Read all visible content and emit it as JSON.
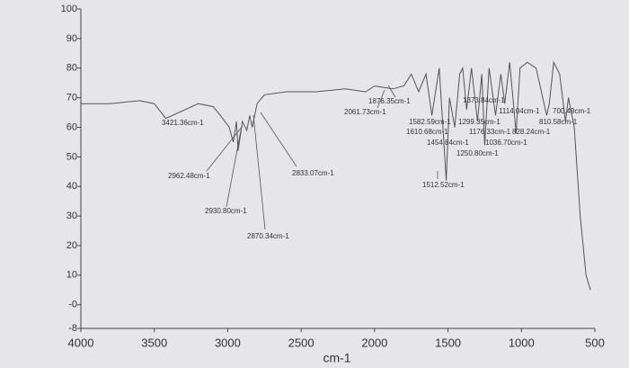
{
  "chart_data": {
    "type": "line",
    "xlabel": "cm-1",
    "x": [
      4000,
      3800,
      3600,
      3500,
      3421,
      3200,
      3100,
      3050,
      2990,
      2962,
      2940,
      2930,
      2900,
      2870,
      2850,
      2833,
      2800,
      2750,
      2600,
      2400,
      2200,
      2061,
      2000,
      1876,
      1800,
      1750,
      1700,
      1650,
      1610,
      1582,
      1560,
      1512,
      1490,
      1454,
      1420,
      1400,
      1373,
      1340,
      1299,
      1270,
      1250,
      1220,
      1176,
      1140,
      1114,
      1080,
      1036,
      1010,
      960,
      900,
      828,
      810,
      780,
      740,
      700,
      680,
      640,
      600,
      560,
      530
    ],
    "values": [
      68,
      68,
      69,
      68,
      63,
      68,
      67,
      64,
      60,
      55,
      62,
      52,
      62,
      59,
      64,
      60,
      68,
      71,
      72,
      72,
      73,
      72,
      74,
      73,
      74,
      78,
      72,
      78,
      64,
      73,
      80,
      42,
      70,
      60,
      78,
      80,
      66,
      80,
      62,
      78,
      54,
      80,
      64,
      78,
      68,
      82,
      58,
      80,
      82,
      80,
      64,
      68,
      82,
      78,
      62,
      70,
      60,
      30,
      10,
      5
    ],
    "color": "#555555",
    "xlim": [
      4000,
      500
    ],
    "xticks": [
      4000,
      3500,
      3000,
      2500,
      2000,
      1500,
      1000,
      500
    ],
    "ylim": [
      -8,
      100
    ],
    "yticks": [
      100,
      90,
      80,
      70,
      60,
      50,
      40,
      30,
      20,
      10,
      {
        "value": 0,
        "label": "-0"
      },
      -8
    ],
    "annotations": [
      "3421.36cm-1",
      "2962.48cm-1",
      "2930.80cm-1",
      "2870.34cm-1",
      "2833.07cm-1",
      "2061.73cm-1",
      "1876.35cm-1",
      "1373.84cm-1",
      "1114.04cm-1",
      "700.49cm-1",
      "1582.59cm-1",
      "1299.35cm-1",
      "810.58cm-1",
      "1610.68cm-1",
      "1176.33cm-1",
      "828.24cm-1",
      "1454.84cm-1",
      "1036.70cm-1",
      "1250.80cm-1",
      "1512.52cm-1"
    ]
  }
}
